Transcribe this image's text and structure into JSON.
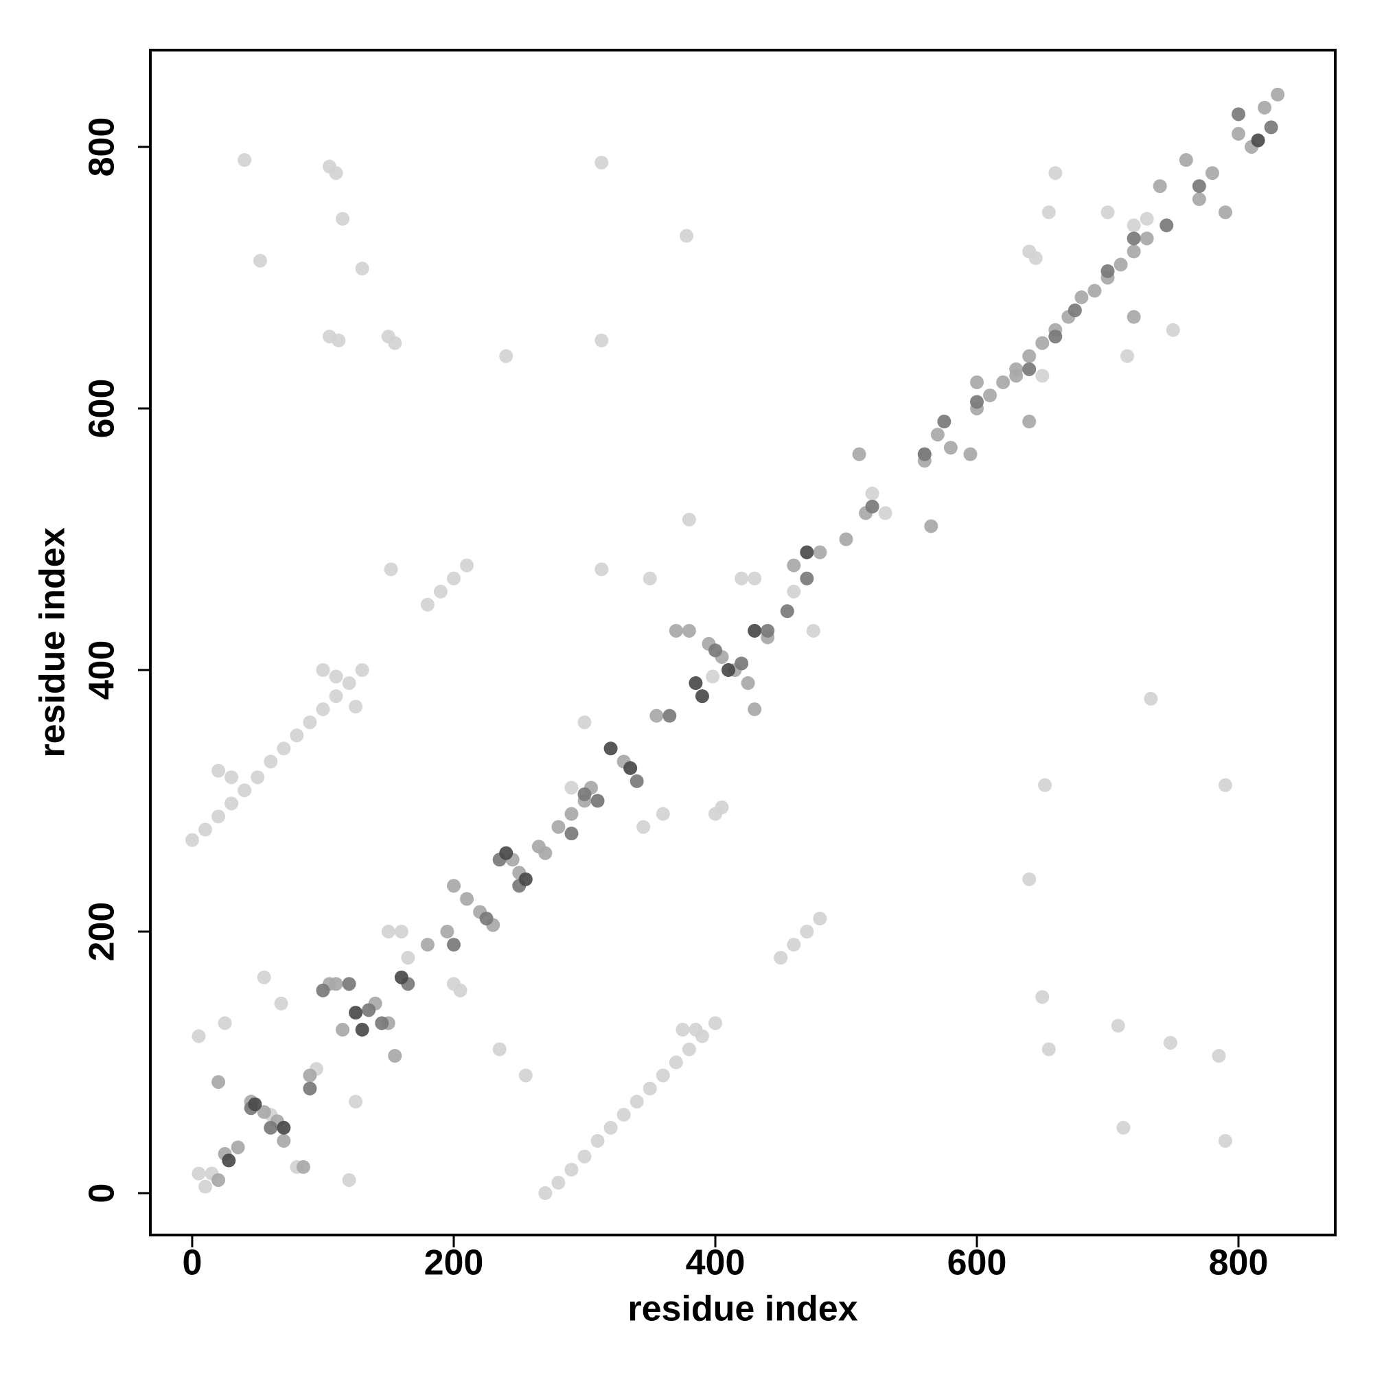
{
  "chart_data": {
    "type": "scatter",
    "x_label": "residue index",
    "y_label": "residue index",
    "xlim": [
      -32,
      874
    ],
    "ylim": [
      -32,
      874
    ],
    "xticks": [
      0,
      200,
      400,
      600,
      800
    ],
    "yticks": [
      0,
      200,
      400,
      600,
      800
    ],
    "series": [
      {
        "color": "#d2d2d2",
        "x": [
          270,
          280,
          290,
          300,
          310,
          320,
          330,
          340,
          350,
          360,
          370,
          380,
          390,
          400,
          375,
          385,
          0,
          10,
          20,
          30,
          40,
          50,
          60,
          70,
          80,
          90,
          100,
          110,
          120,
          130,
          100,
          110,
          20,
          30,
          125,
          180,
          190,
          200,
          210,
          450,
          460,
          470,
          480,
          40,
          105,
          110,
          115,
          52,
          130,
          105,
          112,
          150,
          155,
          240,
          313,
          313,
          378,
          420,
          350,
          152,
          313,
          398,
          655,
          750,
          652,
          790,
          733,
          640,
          650,
          655,
          708,
          712,
          748,
          785,
          790,
          640,
          650,
          715,
          5,
          10,
          15,
          55,
          60,
          80,
          120,
          125,
          160,
          165,
          200,
          205,
          235,
          255,
          300,
          310,
          290,
          345,
          360,
          400,
          405,
          475,
          520,
          530,
          380,
          730,
          720,
          700,
          660,
          645,
          5,
          25,
          68,
          95,
          150,
          460,
          430
        ],
        "values": [
          0,
          8,
          18,
          28,
          40,
          50,
          60,
          70,
          80,
          90,
          100,
          110,
          120,
          130,
          125,
          125,
          270,
          278,
          288,
          298,
          308,
          318,
          330,
          340,
          350,
          360,
          370,
          380,
          390,
          400,
          400,
          395,
          323,
          318,
          372,
          450,
          460,
          470,
          480,
          180,
          190,
          200,
          210,
          790,
          785,
          780,
          745,
          713,
          707,
          655,
          652,
          655,
          650,
          640,
          788,
          652,
          732,
          470,
          470,
          477,
          477,
          395,
          750,
          660,
          312,
          312,
          378,
          240,
          150,
          110,
          128,
          50,
          115,
          105,
          40,
          720,
          625,
          640,
          120,
          5,
          15,
          165,
          60,
          20,
          10,
          70,
          200,
          180,
          160,
          155,
          110,
          90,
          360,
          300,
          310,
          280,
          290,
          290,
          295,
          430,
          535,
          520,
          515,
          745,
          740,
          750,
          780,
          715,
          15,
          130,
          145,
          95,
          200,
          460,
          470
        ]
      },
      {
        "color": "#a8a8a8",
        "x": [
          20,
          25,
          35,
          45,
          55,
          65,
          90,
          105,
          115,
          140,
          150,
          155,
          180,
          195,
          200,
          210,
          220,
          230,
          250,
          270,
          280,
          290,
          300,
          305,
          330,
          370,
          380,
          395,
          405,
          415,
          425,
          430,
          460,
          480,
          500,
          515,
          560,
          570,
          580,
          600,
          610,
          620,
          630,
          640,
          650,
          660,
          670,
          680,
          690,
          700,
          710,
          720,
          730,
          740,
          760,
          770,
          780,
          800,
          810,
          820,
          830,
          640,
          565,
          595,
          720,
          790,
          20,
          70,
          85,
          110,
          245,
          265,
          355,
          440,
          510,
          560,
          600,
          630
        ],
        "values": [
          10,
          30,
          35,
          70,
          62,
          55,
          90,
          160,
          125,
          145,
          130,
          105,
          190,
          200,
          235,
          225,
          215,
          205,
          245,
          260,
          280,
          290,
          300,
          310,
          330,
          430,
          430,
          420,
          410,
          400,
          390,
          370,
          480,
          490,
          500,
          520,
          560,
          580,
          570,
          600,
          610,
          620,
          630,
          640,
          650,
          660,
          670,
          685,
          690,
          700,
          710,
          720,
          730,
          770,
          790,
          760,
          780,
          810,
          800,
          830,
          840,
          590,
          510,
          565,
          670,
          750,
          85,
          40,
          20,
          160,
          255,
          265,
          365,
          425,
          565,
          565,
          620,
          625
        ]
      },
      {
        "color": "#7a7a7a",
        "x": [
          45,
          60,
          90,
          100,
          120,
          135,
          145,
          165,
          200,
          225,
          235,
          250,
          290,
          300,
          310,
          340,
          365,
          400,
          420,
          440,
          455,
          470,
          520,
          560,
          575,
          600,
          640,
          660,
          675,
          700,
          720,
          745,
          770,
          800,
          825
        ],
        "values": [
          65,
          50,
          80,
          155,
          160,
          140,
          130,
          160,
          190,
          210,
          255,
          235,
          275,
          305,
          300,
          315,
          365,
          415,
          405,
          430,
          445,
          470,
          525,
          565,
          590,
          605,
          630,
          655,
          675,
          705,
          730,
          740,
          770,
          825,
          815
        ]
      },
      {
        "color": "#4a4a4a",
        "x": [
          28,
          48,
          70,
          125,
          130,
          160,
          240,
          255,
          320,
          335,
          385,
          390,
          410,
          430,
          470,
          815
        ],
        "values": [
          25,
          68,
          50,
          138,
          125,
          165,
          260,
          240,
          340,
          325,
          390,
          380,
          400,
          430,
          490,
          805
        ]
      }
    ]
  }
}
